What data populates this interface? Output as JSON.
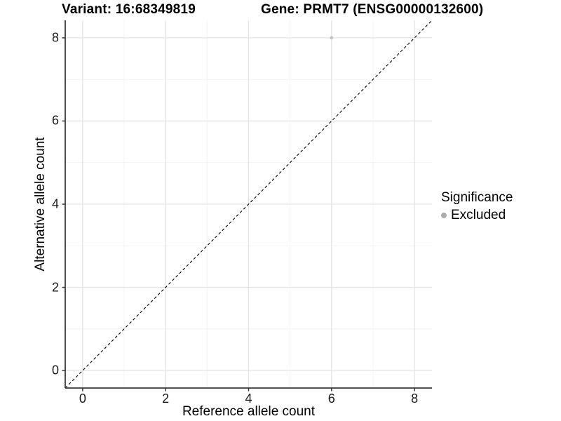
{
  "chart_data": {
    "type": "scatter",
    "title_left": "Variant: 16:68349819",
    "title_right": "Gene: PRMT7 (ENSG00000132600)",
    "xlabel": "Reference allele count",
    "ylabel": "Alternative allele count",
    "xlim": [
      -0.42,
      8.42
    ],
    "ylim": [
      -0.42,
      8.42
    ],
    "x_ticks": [
      0,
      2,
      4,
      6,
      8
    ],
    "y_ticks": [
      0,
      2,
      4,
      6,
      8
    ],
    "x_minor_ticks": [
      1,
      3,
      5,
      7
    ],
    "y_minor_ticks": [
      1,
      3,
      5,
      7
    ],
    "grid": true,
    "series": [
      {
        "name": "Excluded",
        "points": [
          {
            "x": 6,
            "y": 8
          }
        ],
        "color": "#c3c3c3",
        "point_radius": 2.4
      }
    ],
    "reference_line": {
      "type": "identity",
      "x1": -0.42,
      "y1": -0.42,
      "x2": 8.42,
      "y2": 8.42,
      "style": "dashed",
      "color": "#000000"
    },
    "legend": {
      "title": "Significance",
      "position": "right",
      "items": [
        {
          "label": "Excluded",
          "color": "#acacac",
          "marker": "circle"
        }
      ]
    },
    "style": {
      "grid_major_color": "#e4e4e4",
      "grid_minor_color": "#f1f1f1",
      "axis_line_color": "#383838",
      "tick_mark_color": "#383838",
      "background": "#ffffff"
    }
  }
}
